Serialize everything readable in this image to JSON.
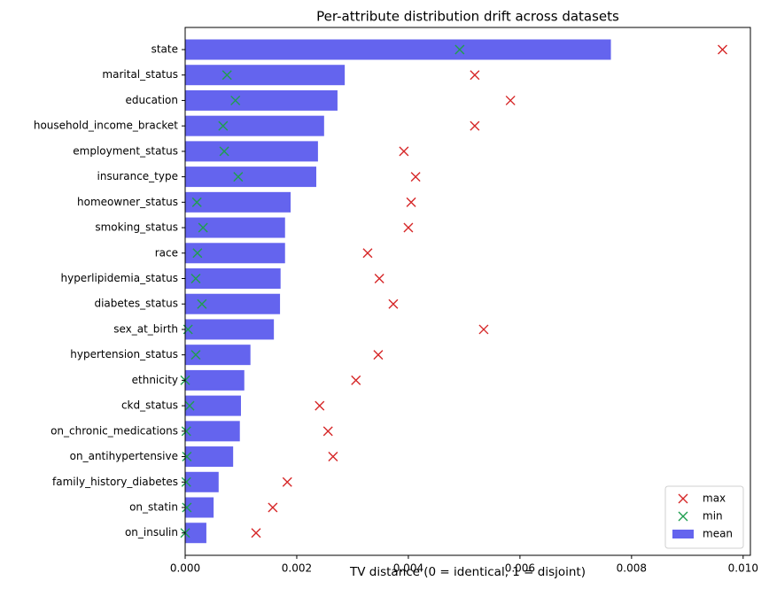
{
  "chart_data": {
    "type": "bar",
    "orientation": "horizontal",
    "title": "Per-attribute distribution drift across datasets",
    "x_label": "TV distance (0 = identical, 1 = disjoint)",
    "categories": [
      "state",
      "marital_status",
      "education",
      "household_income_bracket",
      "employment_status",
      "insurance_type",
      "homeowner_status",
      "smoking_status",
      "race",
      "hyperlipidemia_status",
      "diabetes_status",
      "sex_at_birth",
      "hypertension_status",
      "ethnicity",
      "ckd_status",
      "on_chronic_medications",
      "on_antihypertensive",
      "family_history_diabetes",
      "on_statin",
      "on_insulin"
    ],
    "series": [
      {
        "name": "max",
        "color": "#d62728",
        "marker": "x",
        "values": [
          0.00963,
          0.00519,
          0.00583,
          0.00519,
          0.00392,
          0.00413,
          0.00405,
          0.004,
          0.00327,
          0.00348,
          0.00373,
          0.00535,
          0.00346,
          0.00306,
          0.00241,
          0.00256,
          0.00265,
          0.00183,
          0.00157,
          0.00127
        ]
      },
      {
        "name": "min",
        "color": "#1f9e4f",
        "marker": "x",
        "values": [
          0.00492,
          0.00075,
          0.0009,
          0.00068,
          0.0007,
          0.00095,
          0.00021,
          0.00032,
          0.00022,
          0.00019,
          0.0003,
          5e-05,
          0.00019,
          0,
          8e-05,
          2e-05,
          3e-05,
          2e-05,
          3e-05,
          0
        ]
      },
      {
        "name": "mean",
        "color": "#6464ee",
        "marker": "bar",
        "values": [
          0.00763,
          0.00286,
          0.00273,
          0.00249,
          0.00238,
          0.00235,
          0.00189,
          0.00179,
          0.00179,
          0.00171,
          0.0017,
          0.00159,
          0.00117,
          0.00106,
          0.001,
          0.00098,
          0.00086,
          0.0006,
          0.00051,
          0.00038
        ]
      }
    ],
    "xlim": [
      0,
      0.01013
    ],
    "xticks": [
      {
        "value": 0,
        "label": "0.000"
      },
      {
        "value": 0.002,
        "label": "0.002"
      },
      {
        "value": 0.004,
        "label": "0.004"
      },
      {
        "value": 0.006,
        "label": "0.006"
      },
      {
        "value": 0.008,
        "label": "0.008"
      },
      {
        "value": 0.01,
        "label": "0.010"
      }
    ],
    "legend": "lower right"
  }
}
